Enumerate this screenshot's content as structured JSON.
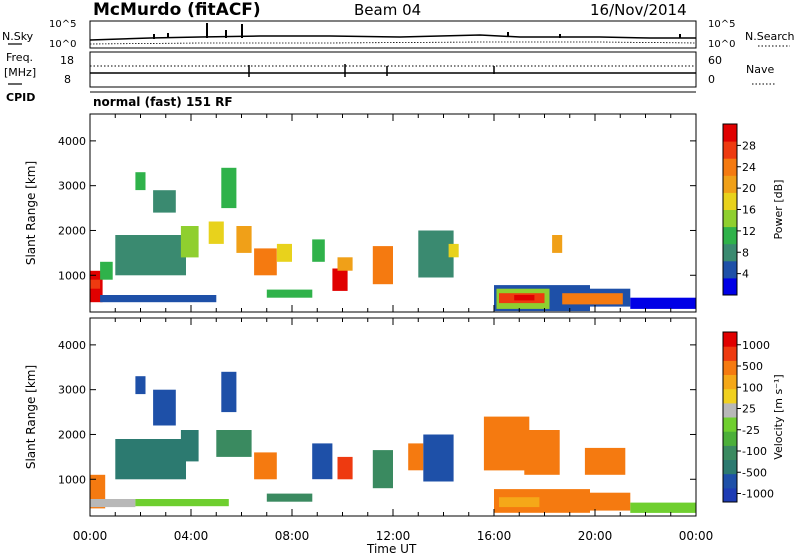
{
  "header": {
    "site": "McMurdo (fitACF)",
    "beam": "Beam 04",
    "date": "16/Nov/2014"
  },
  "noise_panel": {
    "left_label": "N.Sky",
    "right_label": "N.Search",
    "tick_top": "10^5",
    "tick_bottom": "10^0"
  },
  "freq_panel": {
    "left_label_1": "Freq.",
    "left_label_2": "[MHz]",
    "left_label_3": "CPID",
    "right_label": "Nave",
    "left_ticks": [
      "18",
      "8"
    ],
    "right_ticks": [
      "60",
      "0"
    ]
  },
  "mode_text": "normal (fast) 151 RF",
  "x_axis": {
    "label": "Time UT",
    "ticks": [
      "00:00",
      "04:00",
      "08:00",
      "12:00",
      "16:00",
      "20:00",
      "00:00"
    ]
  },
  "chart_data": [
    {
      "type": "heatmap",
      "name": "power",
      "ylabel": "Slant Range [km]",
      "yticks": [
        1000,
        2000,
        3000,
        4000
      ],
      "ylim": [
        180,
        4600
      ],
      "xlim": [
        0,
        24
      ],
      "colorbar": {
        "label": "Power [dB]",
        "ticks": [
          "4",
          "8",
          "12",
          "16",
          "20",
          "24",
          "28"
        ],
        "colors": [
          "#0000e6",
          "#1e50a8",
          "#3a8a70",
          "#2fb24a",
          "#8fcf2f",
          "#e8d21c",
          "#f0a018",
          "#f57a10",
          "#ee3a10",
          "#e00000"
        ]
      },
      "cells": [
        {
          "t0": 0.0,
          "t1": 0.5,
          "r0": 400,
          "r1": 1100,
          "c": 9
        },
        {
          "t0": 0.0,
          "t1": 0.4,
          "r0": 700,
          "r1": 900,
          "c": 8
        },
        {
          "t0": 0.4,
          "t1": 0.9,
          "r0": 900,
          "r1": 1300,
          "c": 3
        },
        {
          "t0": 0.4,
          "t1": 5.0,
          "r0": 400,
          "r1": 560,
          "c": 1
        },
        {
          "t0": 1.0,
          "t1": 3.8,
          "r0": 1000,
          "r1": 1900,
          "c": 2
        },
        {
          "t0": 1.8,
          "t1": 2.2,
          "r0": 2900,
          "r1": 3300,
          "c": 3
        },
        {
          "t0": 2.5,
          "t1": 3.4,
          "r0": 2400,
          "r1": 2900,
          "c": 2
        },
        {
          "t0": 3.6,
          "t1": 4.3,
          "r0": 1400,
          "r1": 2100,
          "c": 4
        },
        {
          "t0": 4.7,
          "t1": 5.3,
          "r0": 1700,
          "r1": 2200,
          "c": 5
        },
        {
          "t0": 5.2,
          "t1": 5.8,
          "r0": 2500,
          "r1": 3400,
          "c": 3
        },
        {
          "t0": 5.8,
          "t1": 6.4,
          "r0": 1500,
          "r1": 2100,
          "c": 6
        },
        {
          "t0": 6.5,
          "t1": 7.4,
          "r0": 1000,
          "r1": 1600,
          "c": 7
        },
        {
          "t0": 7.4,
          "t1": 8.0,
          "r0": 1300,
          "r1": 1700,
          "c": 5
        },
        {
          "t0": 7.0,
          "t1": 8.8,
          "r0": 500,
          "r1": 680,
          "c": 3
        },
        {
          "t0": 8.8,
          "t1": 9.3,
          "r0": 1300,
          "r1": 1800,
          "c": 3
        },
        {
          "t0": 9.6,
          "t1": 10.2,
          "r0": 650,
          "r1": 1150,
          "c": 9
        },
        {
          "t0": 9.8,
          "t1": 10.4,
          "r0": 1100,
          "r1": 1400,
          "c": 6
        },
        {
          "t0": 11.2,
          "t1": 12.0,
          "r0": 800,
          "r1": 1650,
          "c": 7
        },
        {
          "t0": 13.0,
          "t1": 14.4,
          "r0": 950,
          "r1": 2000,
          "c": 2
        },
        {
          "t0": 14.2,
          "t1": 14.6,
          "r0": 1400,
          "r1": 1700,
          "c": 5
        },
        {
          "t0": 16.0,
          "t1": 19.8,
          "r0": 200,
          "r1": 780,
          "c": 1
        },
        {
          "t0": 16.1,
          "t1": 18.2,
          "r0": 250,
          "r1": 700,
          "c": 4
        },
        {
          "t0": 16.2,
          "t1": 18.0,
          "r0": 380,
          "r1": 600,
          "c": 8
        },
        {
          "t0": 16.8,
          "t1": 17.6,
          "r0": 440,
          "r1": 560,
          "c": 9
        },
        {
          "t0": 18.5,
          "t1": 21.4,
          "r0": 300,
          "r1": 700,
          "c": 1
        },
        {
          "t0": 18.7,
          "t1": 21.1,
          "r0": 350,
          "r1": 600,
          "c": 7
        },
        {
          "t0": 18.3,
          "t1": 18.7,
          "r0": 1500,
          "r1": 1900,
          "c": 6
        },
        {
          "t0": 21.4,
          "t1": 24.0,
          "r0": 250,
          "r1": 500,
          "c": 0
        }
      ]
    },
    {
      "type": "heatmap",
      "name": "velocity",
      "ylabel": "Slant Range [km]",
      "yticks": [
        1000,
        2000,
        3000,
        4000
      ],
      "ylim": [
        180,
        4600
      ],
      "xlim": [
        0,
        24
      ],
      "colorbar": {
        "label": "Velocity [m s⁻¹]",
        "ticks": [
          "1000",
          "500",
          "100",
          "25",
          "-25",
          "-100",
          "-500",
          "-1000"
        ],
        "colors": [
          "#1e3cb4",
          "#1e50a8",
          "#2c7a70",
          "#3a8a60",
          "#4caf3a",
          "#6fcf2f",
          "#b8b8b8",
          "#f0d020",
          "#f5a818",
          "#f57a10",
          "#ee3a10",
          "#e00000"
        ]
      },
      "cells": [
        {
          "t0": 0.0,
          "t1": 0.6,
          "r0": 350,
          "r1": 1100,
          "c": 9
        },
        {
          "t0": 0.0,
          "t1": 1.8,
          "r0": 380,
          "r1": 560,
          "c": 6
        },
        {
          "t0": 1.8,
          "t1": 5.5,
          "r0": 400,
          "r1": 560,
          "c": 5
        },
        {
          "t0": 1.0,
          "t1": 3.8,
          "r0": 1000,
          "r1": 1900,
          "c": 2
        },
        {
          "t0": 1.8,
          "t1": 2.2,
          "r0": 2900,
          "r1": 3300,
          "c": 1
        },
        {
          "t0": 2.5,
          "t1": 3.4,
          "r0": 2200,
          "r1": 3000,
          "c": 1
        },
        {
          "t0": 3.6,
          "t1": 4.3,
          "r0": 1400,
          "r1": 2100,
          "c": 2
        },
        {
          "t0": 5.2,
          "t1": 5.8,
          "r0": 2500,
          "r1": 3400,
          "c": 1
        },
        {
          "t0": 5.0,
          "t1": 6.4,
          "r0": 1500,
          "r1": 2100,
          "c": 3
        },
        {
          "t0": 6.5,
          "t1": 7.4,
          "r0": 1000,
          "r1": 1600,
          "c": 9
        },
        {
          "t0": 7.0,
          "t1": 8.8,
          "r0": 500,
          "r1": 680,
          "c": 3
        },
        {
          "t0": 8.8,
          "t1": 9.6,
          "r0": 1000,
          "r1": 1800,
          "c": 1
        },
        {
          "t0": 9.8,
          "t1": 10.4,
          "r0": 1000,
          "r1": 1500,
          "c": 10
        },
        {
          "t0": 11.2,
          "t1": 12.0,
          "r0": 800,
          "r1": 1650,
          "c": 3
        },
        {
          "t0": 12.6,
          "t1": 13.2,
          "r0": 1200,
          "r1": 1800,
          "c": 9
        },
        {
          "t0": 13.2,
          "t1": 14.4,
          "r0": 950,
          "r1": 2000,
          "c": 1
        },
        {
          "t0": 15.6,
          "t1": 17.4,
          "r0": 1200,
          "r1": 2400,
          "c": 9
        },
        {
          "t0": 16.0,
          "t1": 19.8,
          "r0": 250,
          "r1": 780,
          "c": 9
        },
        {
          "t0": 16.2,
          "t1": 17.8,
          "r0": 380,
          "r1": 600,
          "c": 8
        },
        {
          "t0": 17.2,
          "t1": 18.6,
          "r0": 1100,
          "r1": 2100,
          "c": 9
        },
        {
          "t0": 18.5,
          "t1": 21.4,
          "r0": 300,
          "r1": 700,
          "c": 9
        },
        {
          "t0": 19.6,
          "t1": 21.2,
          "r0": 1100,
          "r1": 1700,
          "c": 9
        },
        {
          "t0": 21.4,
          "t1": 24.0,
          "r0": 250,
          "r1": 480,
          "c": 5
        }
      ]
    }
  ]
}
